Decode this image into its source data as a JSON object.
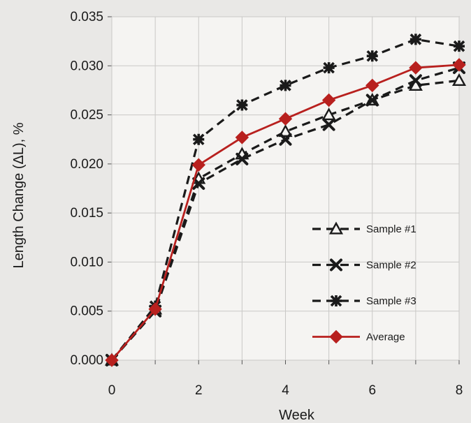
{
  "chart_data": {
    "type": "line",
    "title": "",
    "xlabel": "Week",
    "ylabel": "Length Change (ΔL), %",
    "xlim": [
      0,
      8
    ],
    "ylim": [
      0.0,
      0.035
    ],
    "x_ticks": [
      "0",
      "2",
      "4",
      "6",
      "8"
    ],
    "y_ticks": [
      "0.000",
      "0.005",
      "0.010",
      "0.015",
      "0.020",
      "0.025",
      "0.030",
      "0.035"
    ],
    "grid": true,
    "legend_position": "lower-right",
    "x": [
      0,
      1,
      2,
      3,
      4,
      5,
      6,
      7,
      8
    ],
    "series": [
      {
        "name": "Sample #1",
        "marker": "triangle",
        "line": "dashed",
        "color": "#1a1a1a",
        "values": [
          0.0,
          0.0052,
          0.0185,
          0.021,
          0.0233,
          0.025,
          0.0265,
          0.028,
          0.0285
        ]
      },
      {
        "name": "Sample #2",
        "marker": "x",
        "line": "dashed",
        "color": "#1a1a1a",
        "values": [
          0.0,
          0.005,
          0.018,
          0.0205,
          0.0225,
          0.024,
          0.0265,
          0.0285,
          0.0298
        ]
      },
      {
        "name": "Sample #3",
        "marker": "star",
        "line": "dashed",
        "color": "#1a1a1a",
        "values": [
          0.0,
          0.0055,
          0.0225,
          0.026,
          0.028,
          0.0298,
          0.031,
          0.0327,
          0.032
        ]
      },
      {
        "name": "Average",
        "marker": "diamond",
        "line": "solid",
        "color": "#b8201e",
        "values": [
          0.0,
          0.0052,
          0.0199,
          0.0227,
          0.0246,
          0.0265,
          0.028,
          0.0298,
          0.0301
        ]
      }
    ]
  }
}
